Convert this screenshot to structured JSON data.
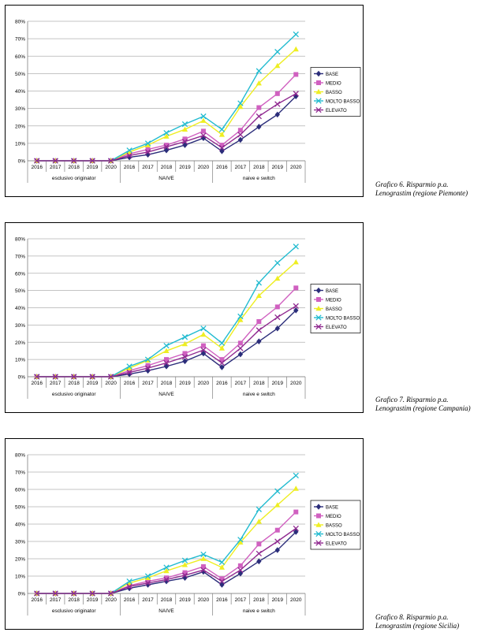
{
  "chart_data": [
    {
      "type": "line",
      "groups": [
        "esclusivo originator",
        "NAIVE",
        "naive e switch"
      ],
      "categories": [
        "2016",
        "2017",
        "2018",
        "2019",
        "2020",
        "2016",
        "2017",
        "2018",
        "2019",
        "2020",
        "2016",
        "2017",
        "2018",
        "2019",
        "2020"
      ],
      "ylim": [
        0,
        0.8
      ],
      "yticks": [
        "0%",
        "10%",
        "20%",
        "30%",
        "40%",
        "50%",
        "60%",
        "70%",
        "80%"
      ],
      "grid": true,
      "legend_position": "right",
      "series": [
        {
          "name": "BASE",
          "color": "#2b2d7a",
          "marker": "diamond",
          "values": [
            0,
            0,
            0,
            0,
            0,
            0.02,
            0.035,
            0.06,
            0.09,
            0.13,
            0.055,
            0.12,
            0.195,
            0.265,
            0.37
          ]
        },
        {
          "name": "MEDIO",
          "color": "#d060c0",
          "marker": "square",
          "values": [
            0,
            0,
            0,
            0,
            0,
            0.04,
            0.065,
            0.09,
            0.125,
            0.17,
            0.09,
            0.175,
            0.305,
            0.385,
            0.495
          ]
        },
        {
          "name": "BASSO",
          "color": "#eeee22",
          "marker": "triangle",
          "values": [
            0,
            0,
            0,
            0,
            0,
            0.05,
            0.09,
            0.14,
            0.18,
            0.23,
            0.15,
            0.31,
            0.445,
            0.545,
            0.64
          ]
        },
        {
          "name": "MOLTO BASSO",
          "color": "#22bbd0",
          "marker": "x",
          "values": [
            0,
            0,
            0,
            0,
            0,
            0.06,
            0.1,
            0.16,
            0.21,
            0.255,
            0.18,
            0.33,
            0.515,
            0.625,
            0.725
          ]
        },
        {
          "name": "ELEVATO",
          "color": "#902a90",
          "marker": "x",
          "values": [
            0,
            0,
            0,
            0,
            0,
            0.03,
            0.05,
            0.08,
            0.11,
            0.145,
            0.075,
            0.15,
            0.255,
            0.325,
            0.385
          ]
        }
      ]
    },
    {
      "type": "line",
      "groups": [
        "esclusivo originator",
        "NAIVE",
        "naive e switch"
      ],
      "categories": [
        "2016",
        "2017",
        "2018",
        "2019",
        "2020",
        "2016",
        "2017",
        "2018",
        "2019",
        "2020",
        "2016",
        "2017",
        "2018",
        "2019",
        "2020"
      ],
      "ylim": [
        0,
        0.8
      ],
      "yticks": [
        "0%",
        "10%",
        "20%",
        "30%",
        "40%",
        "50%",
        "60%",
        "70%",
        "80%"
      ],
      "grid": true,
      "legend_position": "right",
      "series": [
        {
          "name": "BASE",
          "color": "#2b2d7a",
          "marker": "diamond",
          "values": [
            0,
            0,
            0,
            0,
            0,
            0.015,
            0.035,
            0.06,
            0.09,
            0.135,
            0.055,
            0.13,
            0.205,
            0.28,
            0.385
          ]
        },
        {
          "name": "MEDIO",
          "color": "#d060c0",
          "marker": "square",
          "values": [
            0,
            0,
            0,
            0,
            0,
            0.035,
            0.065,
            0.1,
            0.135,
            0.18,
            0.1,
            0.195,
            0.32,
            0.405,
            0.515
          ]
        },
        {
          "name": "BASSO",
          "color": "#eeee22",
          "marker": "triangle",
          "values": [
            0,
            0,
            0,
            0,
            0,
            0.05,
            0.095,
            0.15,
            0.19,
            0.245,
            0.165,
            0.33,
            0.47,
            0.57,
            0.665
          ]
        },
        {
          "name": "MOLTO BASSO",
          "color": "#22bbd0",
          "marker": "x",
          "values": [
            0,
            0,
            0,
            0,
            0,
            0.06,
            0.1,
            0.18,
            0.23,
            0.28,
            0.195,
            0.35,
            0.545,
            0.66,
            0.755
          ]
        },
        {
          "name": "ELEVATO",
          "color": "#902a90",
          "marker": "x",
          "values": [
            0,
            0,
            0,
            0,
            0,
            0.025,
            0.05,
            0.08,
            0.115,
            0.155,
            0.08,
            0.165,
            0.27,
            0.345,
            0.41
          ]
        }
      ]
    },
    {
      "type": "line",
      "groups": [
        "esclusivo originator",
        "NAIVE",
        "naive e switch"
      ],
      "categories": [
        "2016",
        "2017",
        "2018",
        "2019",
        "2020",
        "2016",
        "2017",
        "2018",
        "2019",
        "2020",
        "2016",
        "2017",
        "2018",
        "2019",
        "2020"
      ],
      "ylim": [
        0,
        0.8
      ],
      "yticks": [
        "0%",
        "10%",
        "20%",
        "30%",
        "40%",
        "50%",
        "60%",
        "70%",
        "80%"
      ],
      "grid": true,
      "legend_position": "right",
      "series": [
        {
          "name": "BASE",
          "color": "#2b2d7a",
          "marker": "diamond",
          "values": [
            0,
            0,
            0,
            0,
            0,
            0.03,
            0.05,
            0.07,
            0.09,
            0.125,
            0.05,
            0.115,
            0.185,
            0.25,
            0.355
          ]
        },
        {
          "name": "MEDIO",
          "color": "#d060c0",
          "marker": "square",
          "values": [
            0,
            0,
            0,
            0,
            0,
            0.045,
            0.07,
            0.09,
            0.12,
            0.155,
            0.085,
            0.16,
            0.285,
            0.365,
            0.47
          ]
        },
        {
          "name": "BASSO",
          "color": "#eeee22",
          "marker": "triangle",
          "values": [
            0,
            0,
            0,
            0,
            0,
            0.06,
            0.09,
            0.13,
            0.165,
            0.2,
            0.15,
            0.295,
            0.415,
            0.51,
            0.605
          ]
        },
        {
          "name": "MOLTO BASSO",
          "color": "#22bbd0",
          "marker": "x",
          "values": [
            0,
            0,
            0,
            0,
            0,
            0.07,
            0.1,
            0.15,
            0.19,
            0.225,
            0.18,
            0.31,
            0.485,
            0.59,
            0.68
          ]
        },
        {
          "name": "ELEVATO",
          "color": "#902a90",
          "marker": "x",
          "values": [
            0,
            0,
            0,
            0,
            0,
            0.04,
            0.06,
            0.08,
            0.105,
            0.135,
            0.07,
            0.135,
            0.23,
            0.3,
            0.375
          ]
        }
      ]
    }
  ],
  "captions": [
    {
      "line1": "Grafico 6. Risparmio p.a.",
      "line2": "Lenograstim (regione Piemonte)"
    },
    {
      "line1": "Grafico 7. Risparmio p.a.",
      "line2": "Lenograstim (regione Campania)"
    },
    {
      "line1": "Grafico 8. Risparmio p.a.",
      "line2": "Lenograstim (regione Sicilia)"
    }
  ]
}
